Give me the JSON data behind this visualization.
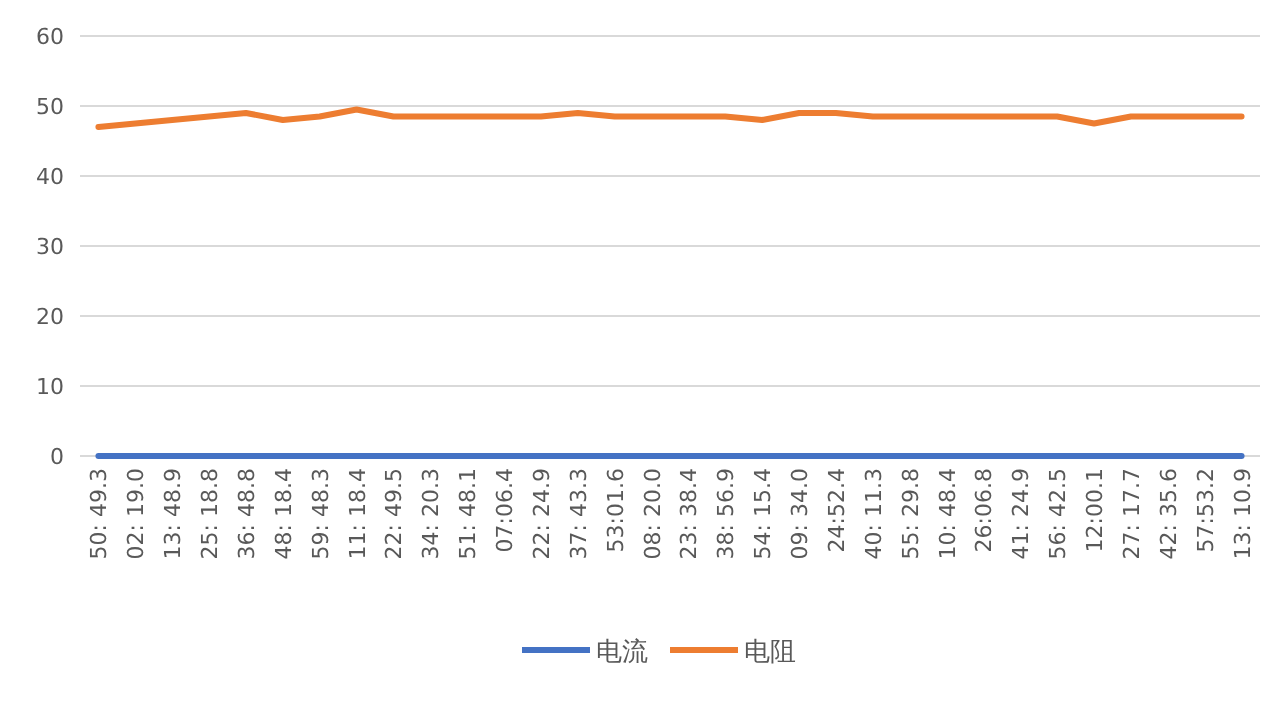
{
  "chart_data": {
    "type": "line",
    "categories": [
      "50: 49.3",
      "02: 19.0",
      "13: 48.9",
      "25: 18.8",
      "36: 48.8",
      "48: 18.4",
      "59: 48.3",
      "11: 18.4",
      "22: 49.5",
      "34: 20.3",
      "51: 48.1",
      "07:06.4",
      "22: 24.9",
      "37: 43.3",
      "53:01.6",
      "08: 20.0",
      "23: 38.4",
      "38: 56.9",
      "54: 15.4",
      "09: 34.0",
      "24:52.4",
      "40: 11.3",
      "55: 29.8",
      "10: 48.4",
      "26:06.8",
      "41: 24.9",
      "56: 42.5",
      "12:00.1",
      "27: 17.7",
      "42: 35.6",
      "57:53.2",
      "13: 10.9"
    ],
    "series": [
      {
        "name": "电流",
        "color": "#4472c4",
        "values": [
          0,
          0,
          0,
          0,
          0,
          0,
          0,
          0,
          0,
          0,
          0,
          0,
          0,
          0,
          0,
          0,
          0,
          0,
          0,
          0,
          0,
          0,
          0,
          0,
          0,
          0,
          0,
          0,
          0,
          0,
          0,
          0
        ]
      },
      {
        "name": "电阻",
        "color": "#ed7d31",
        "values": [
          47,
          47.5,
          48,
          48.5,
          49,
          48,
          48.5,
          49.5,
          48.5,
          48.5,
          48.5,
          48.5,
          48.5,
          49,
          48.5,
          48.5,
          48.5,
          48.5,
          48,
          49,
          49,
          48.5,
          48.5,
          48.5,
          48.5,
          48.5,
          48.5,
          47.5,
          48.5,
          48.5,
          48.5,
          48.5
        ]
      }
    ],
    "ylim": [
      0,
      60
    ],
    "yticks": [
      0,
      10,
      20,
      30,
      40,
      50,
      60
    ],
    "grid": "y",
    "legend": "bottom"
  }
}
